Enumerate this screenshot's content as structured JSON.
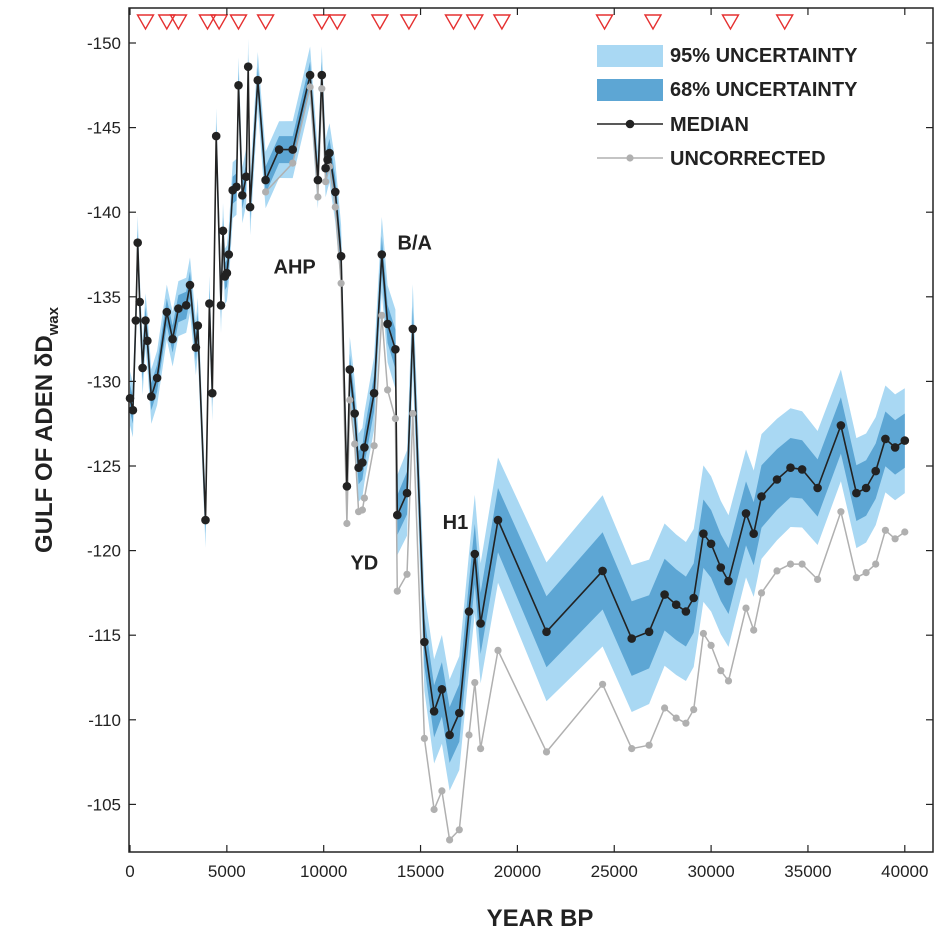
{
  "chart_data": {
    "type": "line",
    "xlabel": "YEAR BP",
    "ylabel_main": "GULF OF ADEN δD",
    "ylabel_sub": "wax",
    "xlim": [
      0,
      41000
    ],
    "ylim": [
      -152,
      -102.5
    ],
    "y_reversed": true,
    "x_ticks": [
      0,
      5000,
      10000,
      15000,
      20000,
      25000,
      30000,
      35000,
      40000
    ],
    "x_tick_labels": [
      "0",
      "5000",
      "10000",
      "15000",
      "20000",
      "25000",
      "30000",
      "35000",
      "40000"
    ],
    "y_ticks": [
      -150,
      -145,
      -140,
      -135,
      -130,
      -125,
      -120,
      -115,
      -110,
      -105
    ],
    "y_tick_labels": [
      "-150",
      "-145",
      "-140",
      "-135",
      "-130",
      "-125",
      "-120",
      "-115",
      "-110",
      "-105"
    ],
    "grid": false,
    "legend_position": "top-right",
    "legend": [
      {
        "label": "95% UNCERTAINTY",
        "color": "#a9d8f3"
      },
      {
        "label": "68% UNCERTAINTY",
        "color": "#5da6d4"
      },
      {
        "label": "MEDIAN",
        "color": "#222222"
      },
      {
        "label": "UNCORRECTED",
        "color": "#b0b0b0"
      }
    ],
    "annotations": [
      {
        "text": "AHP",
        "x": 8500,
        "y": -136.8
      },
      {
        "text": "B/A",
        "x": 14700,
        "y": -138.2
      },
      {
        "text": "YD",
        "x": 12100,
        "y": -119.3
      },
      {
        "text": "H1",
        "x": 16800,
        "y": -121.7
      }
    ],
    "age_control_points": [
      800,
      1900,
      2500,
      4000,
      4600,
      5600,
      7000,
      9900,
      10700,
      12900,
      14400,
      16700,
      17800,
      19200,
      24500,
      27000,
      31000,
      33800
    ],
    "series": [
      {
        "name": "MEDIAN",
        "color": "#222222",
        "points": [
          [
            0,
            -129
          ],
          [
            150,
            -128.3
          ],
          [
            300,
            -133.6
          ],
          [
            400,
            -138.2
          ],
          [
            500,
            -134.7
          ],
          [
            650,
            -130.8
          ],
          [
            800,
            -133.6
          ],
          [
            900,
            -132.4
          ],
          [
            1100,
            -129.1
          ],
          [
            1400,
            -130.2
          ],
          [
            1900,
            -134.1
          ],
          [
            2200,
            -132.5
          ],
          [
            2500,
            -134.3
          ],
          [
            2900,
            -134.5
          ],
          [
            3100,
            -135.7
          ],
          [
            3400,
            -132
          ],
          [
            3500,
            -133.3
          ],
          [
            3900,
            -121.8
          ],
          [
            4100,
            -134.6
          ],
          [
            4250,
            -129.3
          ],
          [
            4450,
            -144.5
          ],
          [
            4700,
            -134.5
          ],
          [
            4800,
            -138.9
          ],
          [
            4900,
            -136.2
          ],
          [
            5000,
            -136.4
          ],
          [
            5100,
            -137.5
          ],
          [
            5300,
            -141.3
          ],
          [
            5500,
            -141.5
          ],
          [
            5600,
            -147.5
          ],
          [
            5800,
            -141
          ],
          [
            6000,
            -142.1
          ],
          [
            6100,
            -148.6
          ],
          [
            6200,
            -140.3
          ],
          [
            6600,
            -147.8
          ],
          [
            7000,
            -141.9
          ],
          [
            7700,
            -143.7
          ],
          [
            8400,
            -143.7
          ],
          [
            9300,
            -148.1
          ],
          [
            9700,
            -141.9
          ],
          [
            9900,
            -148.1
          ],
          [
            10100,
            -142.6
          ],
          [
            10200,
            -143.1
          ],
          [
            10300,
            -143.5
          ],
          [
            10600,
            -141.2
          ],
          [
            10900,
            -137.4
          ],
          [
            11200,
            -123.8
          ],
          [
            11350,
            -130.7
          ],
          [
            11600,
            -128.1
          ],
          [
            11800,
            -124.9
          ],
          [
            12000,
            -125.2
          ],
          [
            12100,
            -126.1
          ],
          [
            12600,
            -129.3
          ],
          [
            13000,
            -137.5
          ],
          [
            13300,
            -133.4
          ],
          [
            13700,
            -131.9
          ],
          [
            13800,
            -122.1
          ],
          [
            14300,
            -123.4
          ],
          [
            14600,
            -133.1
          ],
          [
            15200,
            -114.6
          ],
          [
            15700,
            -110.5
          ],
          [
            16100,
            -111.8
          ],
          [
            16500,
            -109.1
          ],
          [
            17000,
            -110.4
          ],
          [
            17500,
            -116.4
          ],
          [
            17800,
            -119.8
          ],
          [
            18100,
            -115.7
          ],
          [
            19000,
            -121.8
          ],
          [
            21500,
            -115.2
          ],
          [
            24400,
            -118.8
          ],
          [
            25900,
            -114.8
          ],
          [
            26800,
            -115.2
          ],
          [
            27600,
            -117.4
          ],
          [
            28200,
            -116.8
          ],
          [
            28700,
            -116.4
          ],
          [
            29100,
            -117.2
          ],
          [
            29600,
            -121
          ],
          [
            30000,
            -120.4
          ],
          [
            30500,
            -119
          ],
          [
            30900,
            -118.2
          ],
          [
            31800,
            -122.2
          ],
          [
            32200,
            -121
          ],
          [
            32600,
            -123.2
          ],
          [
            33400,
            -124.2
          ],
          [
            34100,
            -124.9
          ],
          [
            34700,
            -124.8
          ],
          [
            35500,
            -123.7
          ],
          [
            36700,
            -127.4
          ],
          [
            37500,
            -123.4
          ],
          [
            38000,
            -123.7
          ],
          [
            38500,
            -124.7
          ],
          [
            39000,
            -126.6
          ],
          [
            39500,
            -126.1
          ],
          [
            40000,
            -126.5
          ]
        ]
      },
      {
        "name": "UNCORRECTED",
        "color": "#b0b0b0",
        "points": [
          [
            7000,
            -141.2
          ],
          [
            8400,
            -142.9
          ],
          [
            9300,
            -147.4
          ],
          [
            9700,
            -140.9
          ],
          [
            9900,
            -147.3
          ],
          [
            10100,
            -141.8
          ],
          [
            10300,
            -142.7
          ],
          [
            10600,
            -140.3
          ],
          [
            10900,
            -135.8
          ],
          [
            11200,
            -121.6
          ],
          [
            11350,
            -128.9
          ],
          [
            11600,
            -126.3
          ],
          [
            11800,
            -122.3
          ],
          [
            12000,
            -122.4
          ],
          [
            12100,
            -123.1
          ],
          [
            12600,
            -126.2
          ],
          [
            13000,
            -133.9
          ],
          [
            13300,
            -129.5
          ],
          [
            13700,
            -127.8
          ],
          [
            13800,
            -117.6
          ],
          [
            14300,
            -118.6
          ],
          [
            14600,
            -128.1
          ],
          [
            15200,
            -108.9
          ],
          [
            15700,
            -104.7
          ],
          [
            16100,
            -105.8
          ],
          [
            16500,
            -102.9
          ],
          [
            17000,
            -103.5
          ],
          [
            17500,
            -109.1
          ],
          [
            17800,
            -112.2
          ],
          [
            18100,
            -108.3
          ],
          [
            19000,
            -114.1
          ],
          [
            21500,
            -108.1
          ],
          [
            24400,
            -112.1
          ],
          [
            25900,
            -108.3
          ],
          [
            26800,
            -108.5
          ],
          [
            27600,
            -110.7
          ],
          [
            28200,
            -110.1
          ],
          [
            28700,
            -109.8
          ],
          [
            29100,
            -110.6
          ],
          [
            29600,
            -115.1
          ],
          [
            30000,
            -114.4
          ],
          [
            30500,
            -112.9
          ],
          [
            30900,
            -112.3
          ],
          [
            31800,
            -116.6
          ],
          [
            32200,
            -115.3
          ],
          [
            32600,
            -117.5
          ],
          [
            33400,
            -118.8
          ],
          [
            34100,
            -119.2
          ],
          [
            34700,
            -119.2
          ],
          [
            35500,
            -118.3
          ],
          [
            36700,
            -122.3
          ],
          [
            37500,
            -118.4
          ],
          [
            38000,
            -118.7
          ],
          [
            38500,
            -119.2
          ],
          [
            39000,
            -121.2
          ],
          [
            39500,
            -120.7
          ],
          [
            40000,
            -121.1
          ]
        ]
      }
    ],
    "bands": {
      "ci68_halfwidth": [
        [
          0,
          0.8
        ],
        [
          10000,
          0.8
        ],
        [
          14000,
          1.2
        ],
        [
          16000,
          1.6
        ],
        [
          19000,
          1.9
        ],
        [
          24000,
          2.3
        ],
        [
          30000,
          2.0
        ],
        [
          35000,
          1.7
        ],
        [
          40000,
          1.6
        ]
      ],
      "ci95_halfwidth": [
        [
          0,
          1.6
        ],
        [
          10000,
          1.7
        ],
        [
          14000,
          2.4
        ],
        [
          16000,
          3.2
        ],
        [
          19000,
          3.7
        ],
        [
          24000,
          4.5
        ],
        [
          30000,
          4.0
        ],
        [
          35000,
          3.4
        ],
        [
          40000,
          3.1
        ]
      ]
    }
  }
}
